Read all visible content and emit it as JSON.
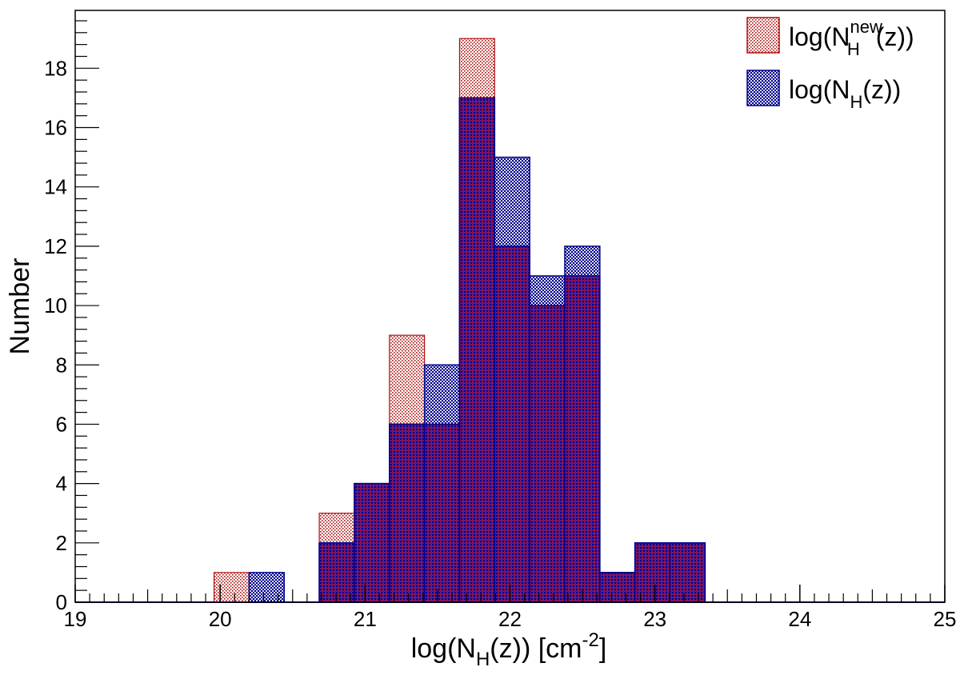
{
  "chart_data": {
    "type": "bar",
    "xlabel": "log(N",
    "xlabel_sub": "H",
    "xlabel_mid": "(z)) [cm",
    "xlabel_sup": "-2",
    "xlabel_end": "]",
    "ylabel": "Number",
    "xlim": [
      19,
      25
    ],
    "ylim": [
      0,
      19.95
    ],
    "x_ticks": [
      "19",
      "20",
      "21",
      "22",
      "23",
      "24",
      "25"
    ],
    "y_ticks": [
      "0",
      "2",
      "4",
      "6",
      "8",
      "10",
      "12",
      "14",
      "16",
      "18"
    ],
    "bin_edges": [
      19.958,
      20.2,
      20.442,
      20.684,
      20.926,
      21.168,
      21.41,
      21.652,
      21.894,
      22.136,
      22.378,
      22.62,
      22.862,
      23.104,
      23.346
    ],
    "series": [
      {
        "name": "log(N_H^new(z))",
        "legend_main": "log(N",
        "legend_sub": "H",
        "legend_sup": "new",
        "legend_end": "(z))",
        "color": "#b01010",
        "pattern": "dots",
        "values": [
          1,
          0,
          0,
          3,
          4,
          9,
          6,
          19,
          12,
          10,
          11,
          1,
          2,
          2
        ]
      },
      {
        "name": "log(N_H(z))",
        "legend_main": "log(N",
        "legend_sub": "H",
        "legend_end": "(z))",
        "color": "#00008b",
        "pattern": "crosshatch",
        "values": [
          0,
          1,
          0,
          2,
          4,
          6,
          8,
          17,
          15,
          11,
          12,
          1,
          2,
          2
        ]
      }
    ],
    "legend_position": "top-right",
    "grid": false
  }
}
